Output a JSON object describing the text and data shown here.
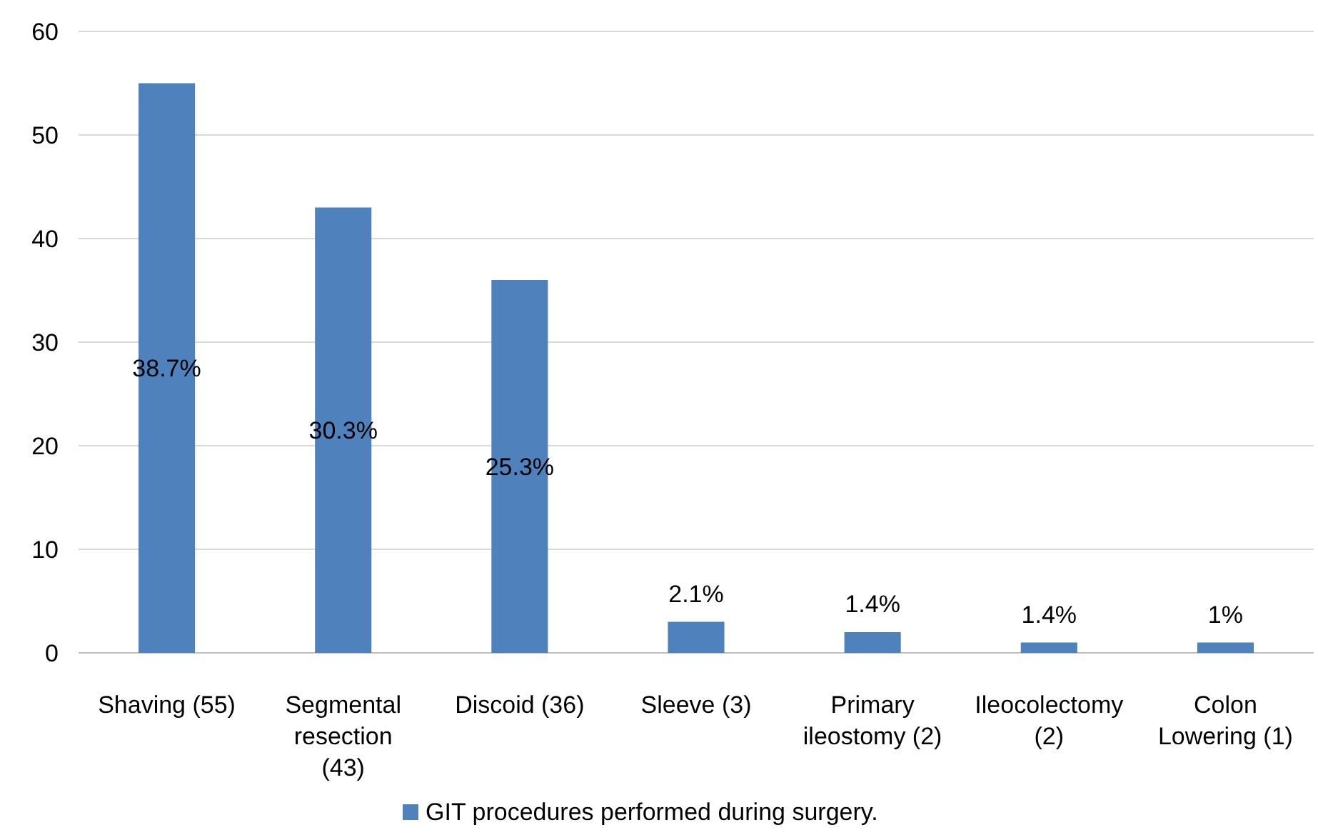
{
  "chart_data": {
    "type": "bar",
    "categories": [
      "Shaving (55)",
      "Segmental resection (43)",
      "Discoid (36)",
      "Sleeve (3)",
      "Primary ileostomy (2)",
      "Ileocolectomy (2)",
      "Colon Lowering (1)"
    ],
    "series": [
      {
        "name": "GIT procedures performed during surgery.",
        "color": "#4f81bd",
        "values": [
          55,
          43,
          36,
          3,
          2,
          1,
          1
        ]
      }
    ],
    "annotations": [
      "38.7%",
      "30.3%",
      "25.3%",
      "2.1%",
      "1.4%",
      "1.4%",
      "1%"
    ],
    "ylim": [
      0,
      60
    ],
    "yticks": [
      0,
      10,
      20,
      30,
      40,
      50,
      60
    ],
    "grid": "y",
    "legend": "bottom"
  }
}
